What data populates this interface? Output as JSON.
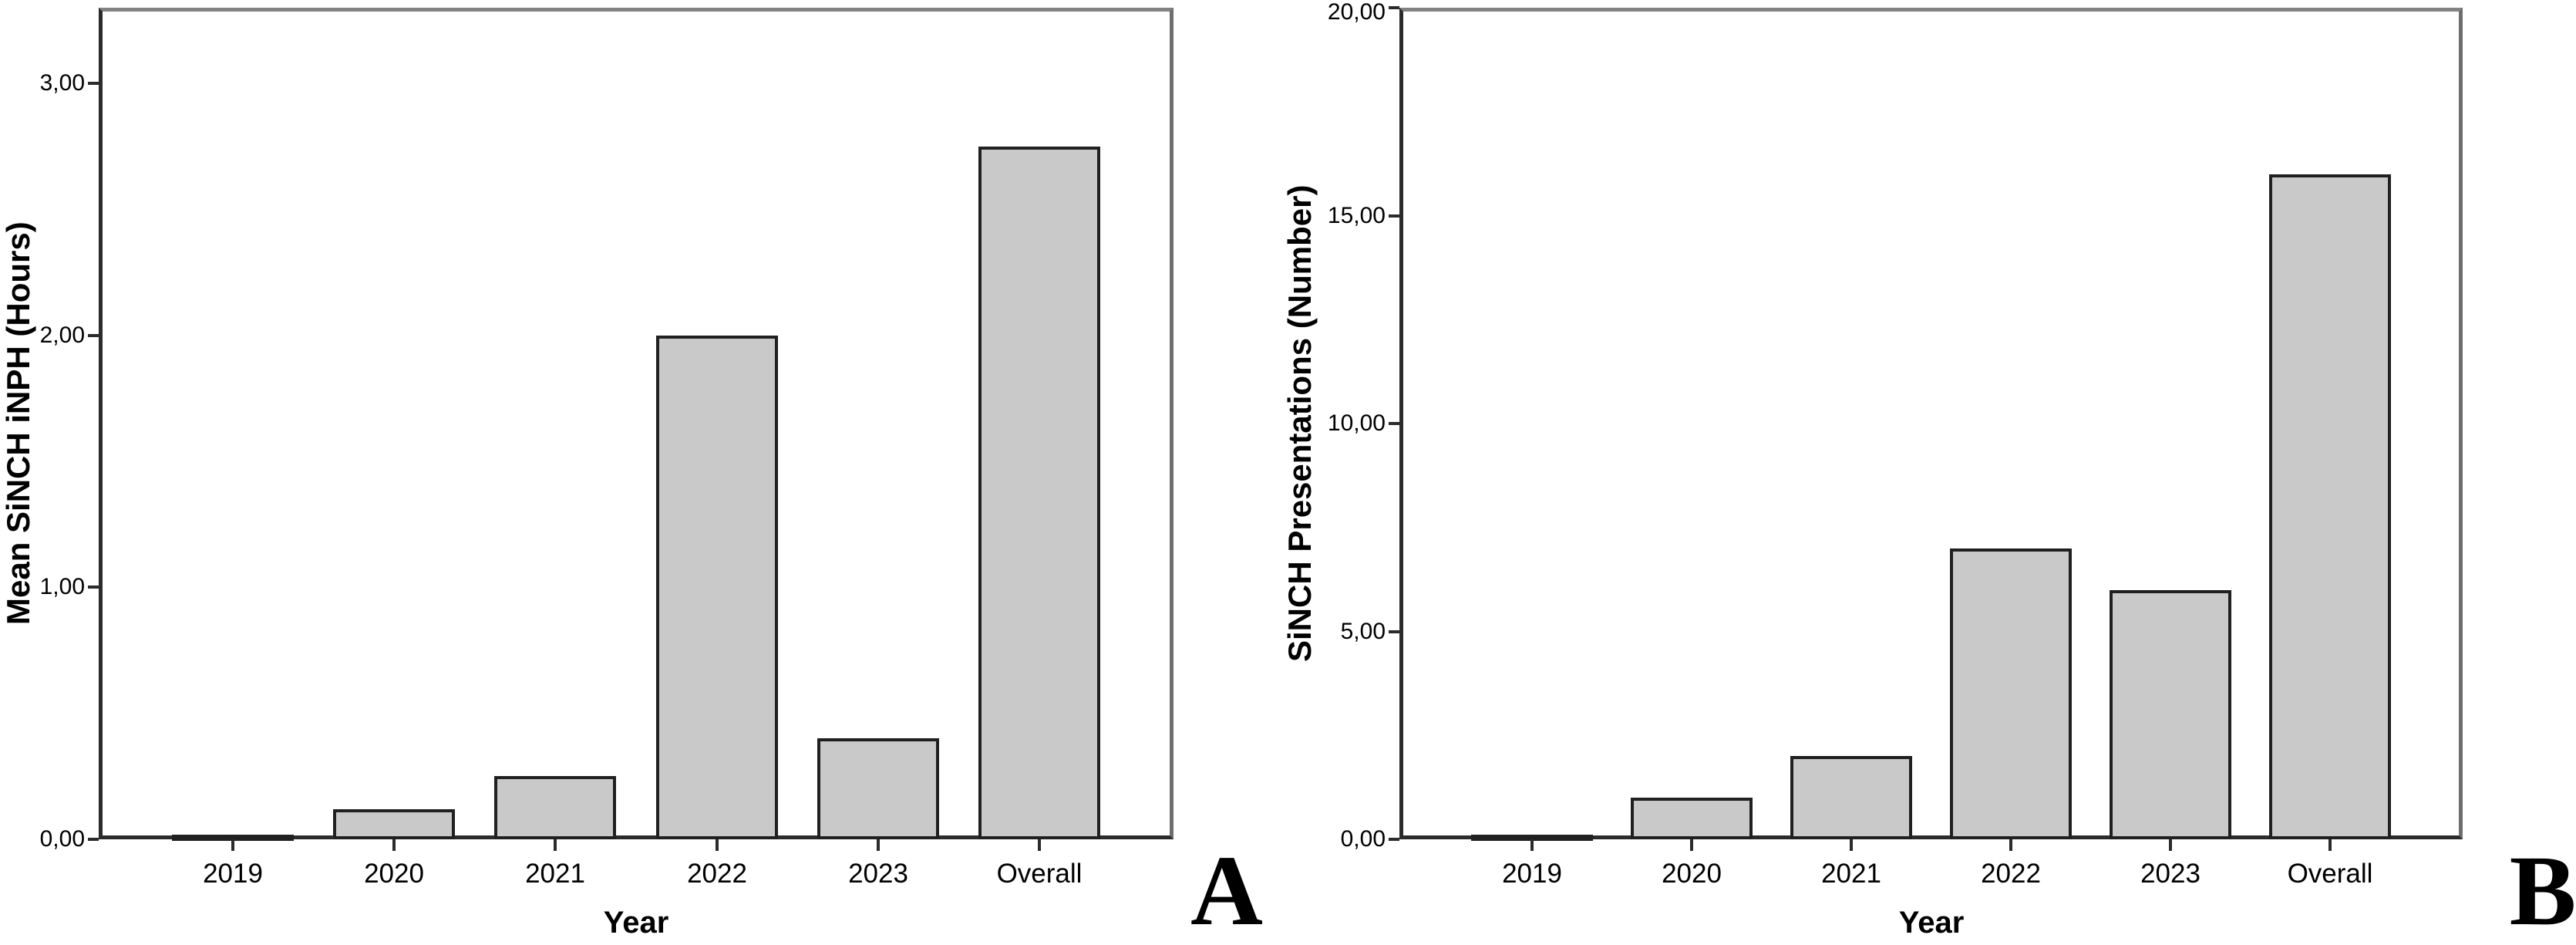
{
  "figure_description": "Two-panel bar chart figure",
  "colors": {
    "background": "#ffffff",
    "bar_fill": "#c9c9c9",
    "bar_border": "#202020",
    "axis_line": "#2b2b2b",
    "frame_line": "#828282",
    "text": "#000000"
  },
  "chart_data": [
    {
      "type": "bar",
      "panel_label": "A",
      "title": "",
      "categories": [
        "2019",
        "2020",
        "2021",
        "2022",
        "2023",
        "Overall"
      ],
      "values": [
        0.01,
        0.12,
        0.25,
        2.0,
        0.4,
        2.75
      ],
      "xlabel": "Year",
      "ylabel": "Mean SiNCH iNPH (Hours)",
      "ylim": [
        0,
        3.3
      ],
      "yticks": [
        0,
        1,
        2,
        3
      ],
      "ytick_labels": [
        "0,00",
        "1,00",
        "2,00",
        "3,00"
      ],
      "grid": false,
      "legend": "none",
      "bar_fill": "#c9c9c9",
      "bar_border": "#202020"
    },
    {
      "type": "bar",
      "panel_label": "B",
      "title": "",
      "categories": [
        "2019",
        "2020",
        "2021",
        "2022",
        "2023",
        "Overall"
      ],
      "values": [
        0,
        1,
        2,
        7,
        6,
        16
      ],
      "xlabel": "Year",
      "ylabel": "SiNCH Presentations (Number)",
      "ylim": [
        0,
        20
      ],
      "yticks": [
        0,
        5,
        10,
        15,
        20
      ],
      "ytick_labels": [
        "0,00",
        "5,00",
        "10,00",
        "15,00",
        "20,00"
      ],
      "grid": false,
      "legend": "none",
      "bar_fill": "#c9c9c9",
      "bar_border": "#202020"
    }
  ]
}
